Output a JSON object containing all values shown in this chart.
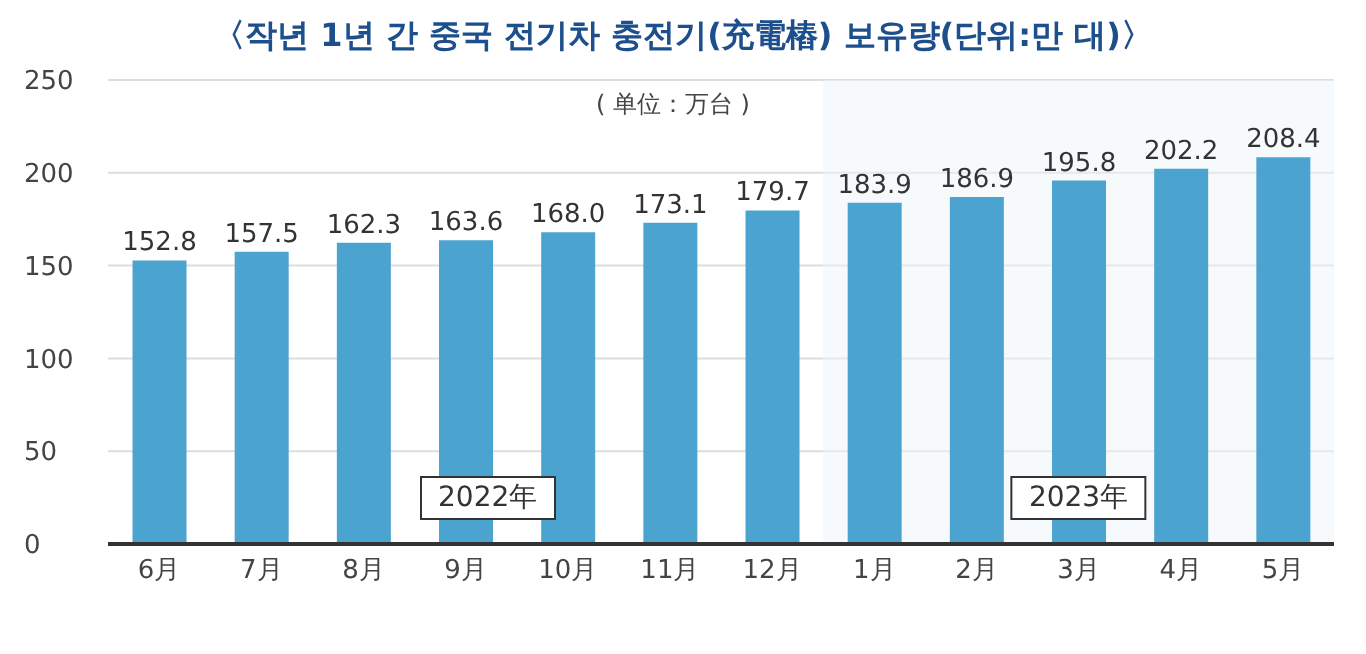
{
  "chart_data": {
    "type": "bar",
    "title": "〈작년 1년 간 중국 전기차 충전기(充電樁) 보유량(단위:만 대)〉",
    "subtitle": "( 单位：万台 )",
    "categories": [
      "6月",
      "7月",
      "8月",
      "9月",
      "10月",
      "11月",
      "12月",
      "1月",
      "2月",
      "3月",
      "4月",
      "5月"
    ],
    "values": [
      152.8,
      157.5,
      162.3,
      163.6,
      168.0,
      173.1,
      179.7,
      183.9,
      186.9,
      195.8,
      202.2,
      208.4
    ],
    "value_labels": [
      "152.8",
      "157.5",
      "162.3",
      "163.6",
      "168.0",
      "173.1",
      "179.7",
      "183.9",
      "186.9",
      "195.8",
      "202.2",
      "208.4"
    ],
    "color": "#4ba3cf",
    "ylim": [
      0,
      250
    ],
    "yticks": [
      0,
      50,
      100,
      150,
      200,
      250
    ],
    "grid": "y",
    "annotations": [
      "2022年"
    ],
    "bands": [
      {
        "axis": "x",
        "from": "1月",
        "to": "5月",
        "label": "2023年",
        "color": "#eef5fa"
      }
    ]
  }
}
